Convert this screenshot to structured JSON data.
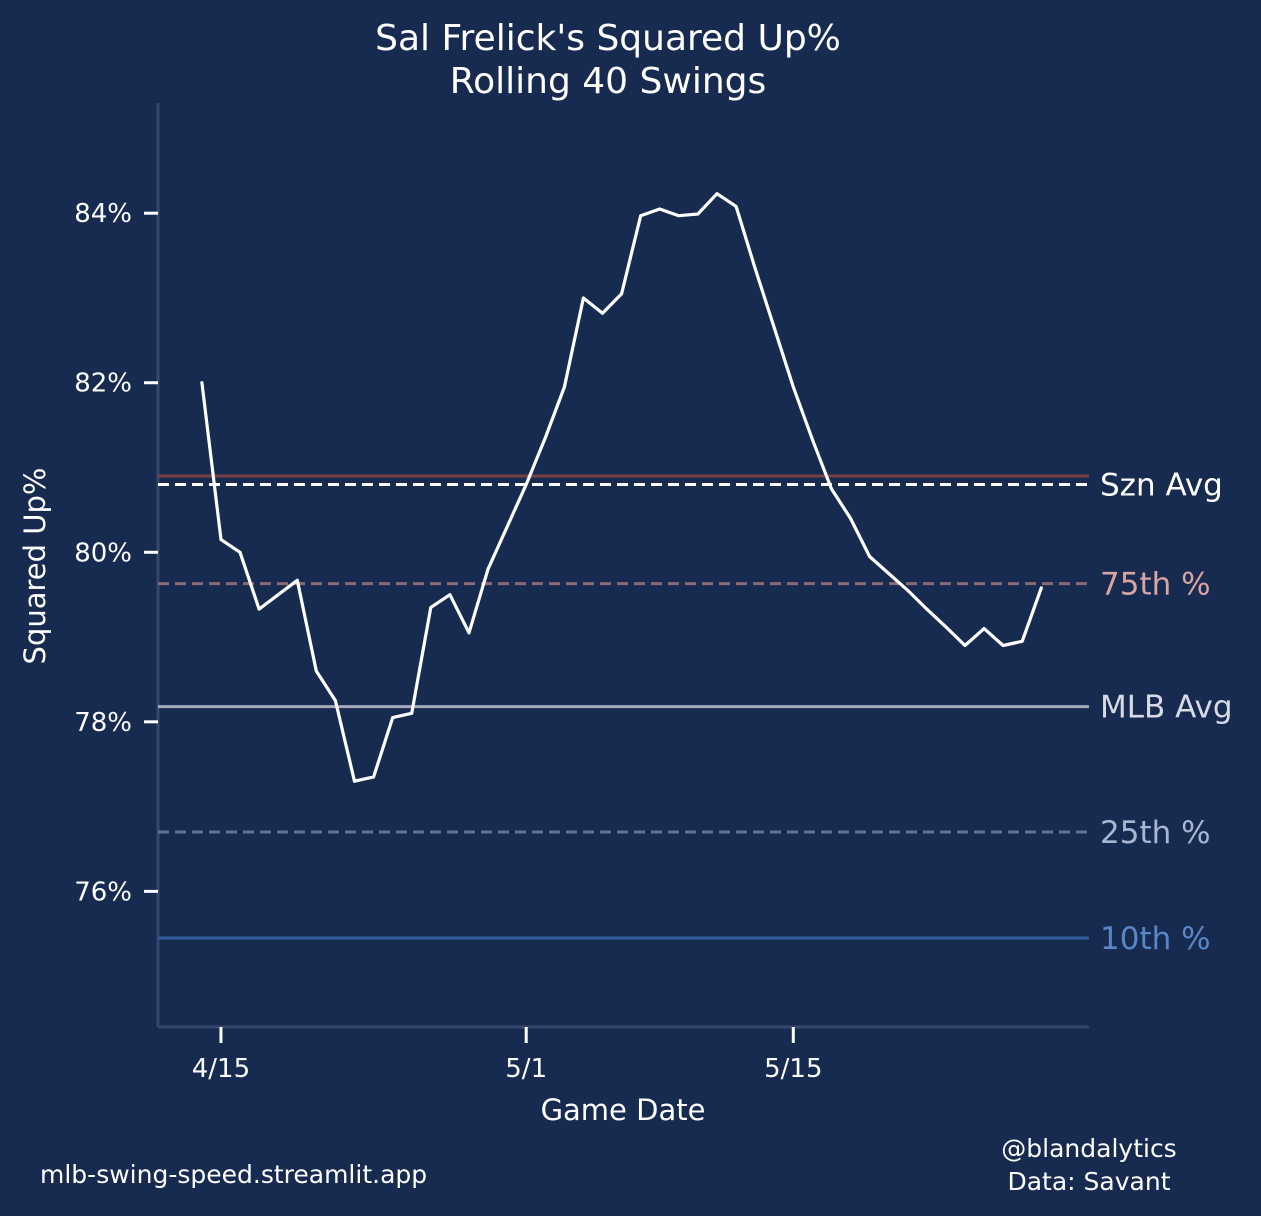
{
  "chart_data": {
    "type": "line",
    "title": "Sal Frelick's Squared Up%",
    "subtitle": "Rolling 40 Swings",
    "xlabel": "Game Date",
    "ylabel": "Squared Up%",
    "x_ticks": [
      {
        "day": 0,
        "label": "4/15"
      },
      {
        "day": 16,
        "label": "5/1"
      },
      {
        "day": 30,
        "label": "5/15"
      }
    ],
    "x_range_days": [
      -3.3,
      45.5
    ],
    "y_ticks": [
      76,
      78,
      80,
      82,
      84
    ],
    "y_tick_suffix": "%",
    "ylim": [
      74.4,
      85.3
    ],
    "grid": false,
    "series": [
      {
        "name": "Rolling Squared Up%",
        "color": "#ffffff",
        "points": [
          [
            -1.0,
            82.0
          ],
          [
            0.0,
            80.15
          ],
          [
            1.0,
            80.0
          ],
          [
            2.0,
            79.33
          ],
          [
            3.0,
            79.5
          ],
          [
            4.0,
            79.67
          ],
          [
            5.0,
            78.6
          ],
          [
            6.0,
            78.25
          ],
          [
            7.0,
            77.3
          ],
          [
            8.0,
            77.35
          ],
          [
            9.0,
            78.05
          ],
          [
            10.0,
            78.1
          ],
          [
            11.0,
            79.35
          ],
          [
            12.0,
            79.5
          ],
          [
            13.0,
            79.05
          ],
          [
            14.0,
            79.8
          ],
          [
            15.0,
            80.3
          ],
          [
            16.0,
            80.8
          ],
          [
            17.0,
            81.35
          ],
          [
            18.0,
            81.95
          ],
          [
            19.0,
            83.0
          ],
          [
            20.0,
            82.82
          ],
          [
            21.0,
            83.05
          ],
          [
            22.0,
            83.97
          ],
          [
            23.0,
            84.05
          ],
          [
            24.0,
            83.97
          ],
          [
            25.0,
            83.99
          ],
          [
            26.0,
            84.23
          ],
          [
            27.0,
            84.08
          ],
          [
            28.0,
            83.35
          ],
          [
            29.0,
            82.65
          ],
          [
            30.0,
            81.95
          ],
          [
            31.0,
            81.33
          ],
          [
            32.0,
            80.75
          ],
          [
            33.0,
            80.4
          ],
          [
            34.0,
            79.95
          ],
          [
            35.0,
            79.75
          ],
          [
            36.0,
            79.55
          ],
          [
            37.0,
            79.33
          ],
          [
            38.0,
            79.12
          ],
          [
            39.0,
            78.9
          ],
          [
            40.0,
            79.1
          ],
          [
            41.0,
            78.9
          ],
          [
            42.0,
            78.95
          ],
          [
            43.0,
            79.58
          ]
        ]
      }
    ],
    "reference_lines": [
      {
        "name": "max",
        "label": "",
        "value": 80.9,
        "color": "#7a3e47",
        "label_color": "#ffffff",
        "style": "solid"
      },
      {
        "name": "szn-avg",
        "label": "Szn Avg",
        "value": 80.8,
        "color": "#ffffff",
        "label_color": "#ffffff",
        "style": "dashed"
      },
      {
        "name": "75th",
        "label": "75th %",
        "value": 79.63,
        "color": "#8a6b74",
        "label_color": "#d9a5a3",
        "style": "dashed"
      },
      {
        "name": "mlb-avg",
        "label": "MLB Avg",
        "value": 78.18,
        "color": "#a5a9bb",
        "label_color": "#d8dbe5",
        "style": "solid"
      },
      {
        "name": "25th",
        "label": "25th %",
        "value": 76.7,
        "color": "#5f7396",
        "label_color": "#a8b6d2",
        "style": "dashed"
      },
      {
        "name": "10th",
        "label": "10th %",
        "value": 75.45,
        "color": "#2e5d9e",
        "label_color": "#5a86c5",
        "style": "solid"
      }
    ]
  },
  "footer": {
    "site": "mlb-swing-speed.streamlit.app",
    "handle": "@blandalytics",
    "source": "Data: Savant"
  },
  "colors": {
    "background": "#172a4f",
    "axis": "#34486e",
    "text": "#ffffff"
  }
}
